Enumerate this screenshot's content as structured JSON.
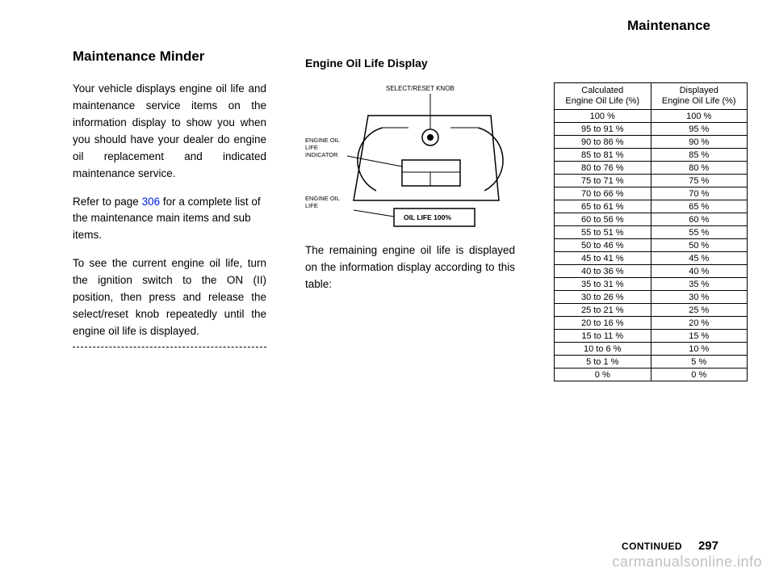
{
  "header": {
    "title": "Maintenance"
  },
  "left": {
    "title": "Maintenance Minder",
    "paragraphs": [
      "Your vehicle displays engine oil life and maintenance service items on the information display to show you when you should have your dealer do engine oil replacement and indicated maintenance service.",
      "Refer to page       for a complete list of the maintenance main items and sub items.",
      "To see the current engine oil life, turn the ignition switch to the ON (II) position, then press and release the select/reset knob repeatedly until the engine oil life is displayed."
    ],
    "page_ref": "306"
  },
  "right_col1": {
    "title": "Engine Oil Life Display",
    "diagram_labels": {
      "top": "SELECT/RESET KNOB",
      "left_top": "ENGINE OIL\nLIFE\nINDICATOR",
      "left_bottom": "ENGINE OIL\nLIFE",
      "panel": "OIL LIFE 100%"
    },
    "para": "The remaining engine oil life is displayed on the information display according to this table:"
  },
  "table": {
    "header": [
      "Calculated\nEngine Oil Life (%)",
      "Displayed\nEngine Oil Life (%)"
    ],
    "rows": [
      [
        "100 %",
        "100 %"
      ],
      [
        "95 to 91 %",
        "95 %"
      ],
      [
        "90 to 86 %",
        "90 %"
      ],
      [
        "85 to 81 %",
        "85 %"
      ],
      [
        "80 to 76 %",
        "80 %"
      ],
      [
        "75 to 71 %",
        "75 %"
      ],
      [
        "70 to 66 %",
        "70 %"
      ],
      [
        "65 to 61 %",
        "65 %"
      ],
      [
        "60 to 56 %",
        "60 %"
      ],
      [
        "55 to 51 %",
        "55 %"
      ],
      [
        "50 to 46 %",
        "50 %"
      ],
      [
        "45 to 41 %",
        "45 %"
      ],
      [
        "40 to 36 %",
        "40 %"
      ],
      [
        "35 to 31 %",
        "35 %"
      ],
      [
        "30 to 26 %",
        "30 %"
      ],
      [
        "25 to 21 %",
        "25 %"
      ],
      [
        "20 to 16 %",
        "20 %"
      ],
      [
        "15 to 11 %",
        "15 %"
      ],
      [
        "10 to 6 %",
        "10 %"
      ],
      [
        "5 to 1 %",
        "5 %"
      ],
      [
        "0 %",
        "0 %"
      ]
    ]
  },
  "footer": {
    "continued": "CONTINUED",
    "pagenum": "297"
  },
  "watermark": "carmanualsonline.info"
}
